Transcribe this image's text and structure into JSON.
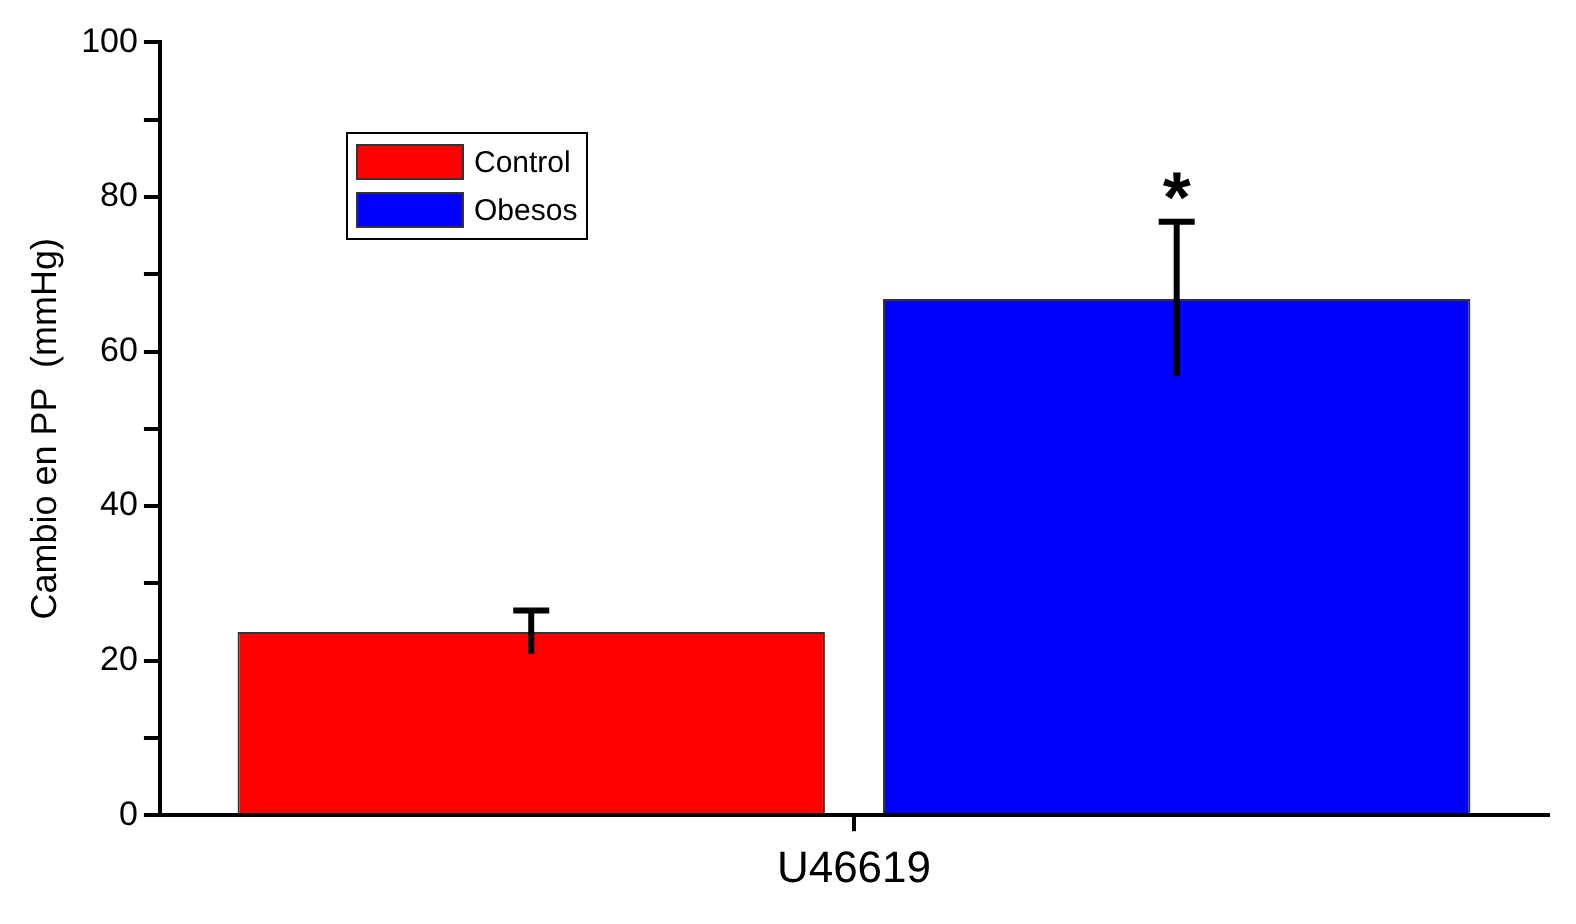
{
  "chart_data": {
    "type": "bar",
    "ylabel": "Cambio en PP  (mmHg)",
    "categories": [
      "U46619"
    ],
    "series": [
      {
        "name": "Control",
        "color": "#ff0000",
        "values": [
          23.7
        ],
        "errors": [
          2.8
        ]
      },
      {
        "name": "Obesos",
        "color": "#0000ff",
        "values": [
          66.8
        ],
        "errors": [
          10
        ]
      }
    ],
    "ylim": [
      0,
      100
    ],
    "yticks": [
      0,
      {
        "value": 10,
        "label": null
      },
      20,
      {
        "value": 30,
        "label": null
      },
      40,
      {
        "value": 50,
        "label": null
      },
      60,
      {
        "value": 70,
        "label": null
      },
      80,
      {
        "value": 90,
        "label": null
      },
      100
    ],
    "annotations": [
      "*"
    ],
    "grid": false,
    "legend": "top left"
  }
}
